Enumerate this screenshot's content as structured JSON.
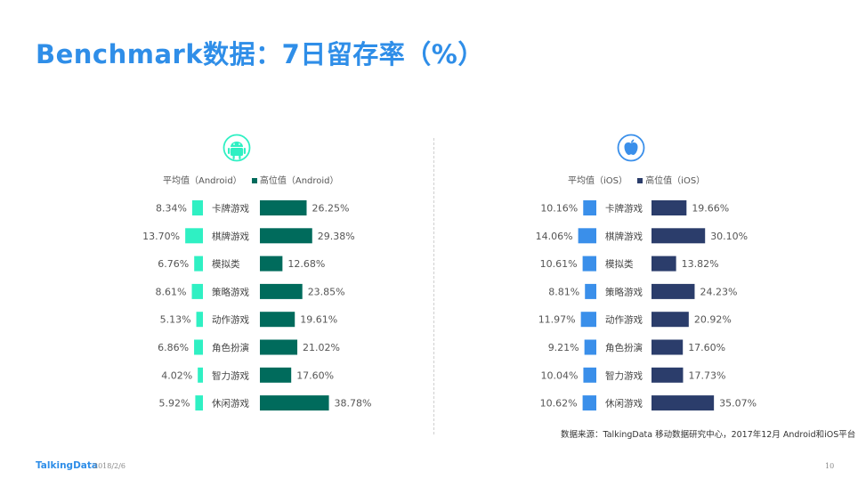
{
  "title": "Benchmark数据：7日留存率（%）",
  "footer": {
    "logo": "TalkingData",
    "date": "2018/2/6",
    "page": "10"
  },
  "source": "数据来源：TalkingData 移动数据研究中心，2017年12月 Android和iOS平台",
  "colors": {
    "title": "#2f8ee8",
    "android_avg": "#2ff0c3",
    "android_high": "#006b5c",
    "ios_avg": "#3a8fea",
    "ios_high": "#2b3d6b"
  },
  "icons": {
    "android": "android-icon",
    "ios": "apple-icon"
  },
  "chart_data": [
    {
      "type": "bar",
      "platform": "Android",
      "categories": [
        "卡牌游戏",
        "棋牌游戏",
        "模拟类",
        "策略游戏",
        "动作游戏",
        "角色扮演",
        "智力游戏",
        "休闲游戏"
      ],
      "series": [
        {
          "name": "平均值（Android）",
          "values": [
            8.34,
            13.7,
            6.76,
            8.61,
            5.13,
            6.86,
            4.02,
            5.92
          ],
          "labels": [
            "8.34%",
            "13.70%",
            "6.76%",
            "8.61%",
            "5.13%",
            "6.86%",
            "4.02%",
            "5.92%"
          ]
        },
        {
          "name": "高位值（Android）",
          "values": [
            26.25,
            29.38,
            12.68,
            23.85,
            19.61,
            21.02,
            17.6,
            38.78
          ],
          "labels": [
            "26.25%",
            "29.38%",
            "12.68%",
            "23.85%",
            "19.61%",
            "21.02%",
            "17.60%",
            "38.78%"
          ]
        }
      ]
    },
    {
      "type": "bar",
      "platform": "iOS",
      "categories": [
        "卡牌游戏",
        "棋牌游戏",
        "模拟类",
        "策略游戏",
        "动作游戏",
        "角色扮演",
        "智力游戏",
        "休闲游戏"
      ],
      "series": [
        {
          "name": "平均值（iOS）",
          "values": [
            10.16,
            14.06,
            10.61,
            8.81,
            11.97,
            9.21,
            10.04,
            10.62
          ],
          "labels": [
            "10.16%",
            "14.06%",
            "10.61%",
            "8.81%",
            "11.97%",
            "9.21%",
            "10.04%",
            "10.62%"
          ]
        },
        {
          "name": "高位值（iOS）",
          "values": [
            19.66,
            30.1,
            13.82,
            24.23,
            20.92,
            17.6,
            17.73,
            35.07
          ],
          "labels": [
            "19.66%",
            "30.10%",
            "13.82%",
            "24.23%",
            "20.92%",
            "17.60%",
            "17.73%",
            "35.07%"
          ]
        }
      ]
    }
  ]
}
